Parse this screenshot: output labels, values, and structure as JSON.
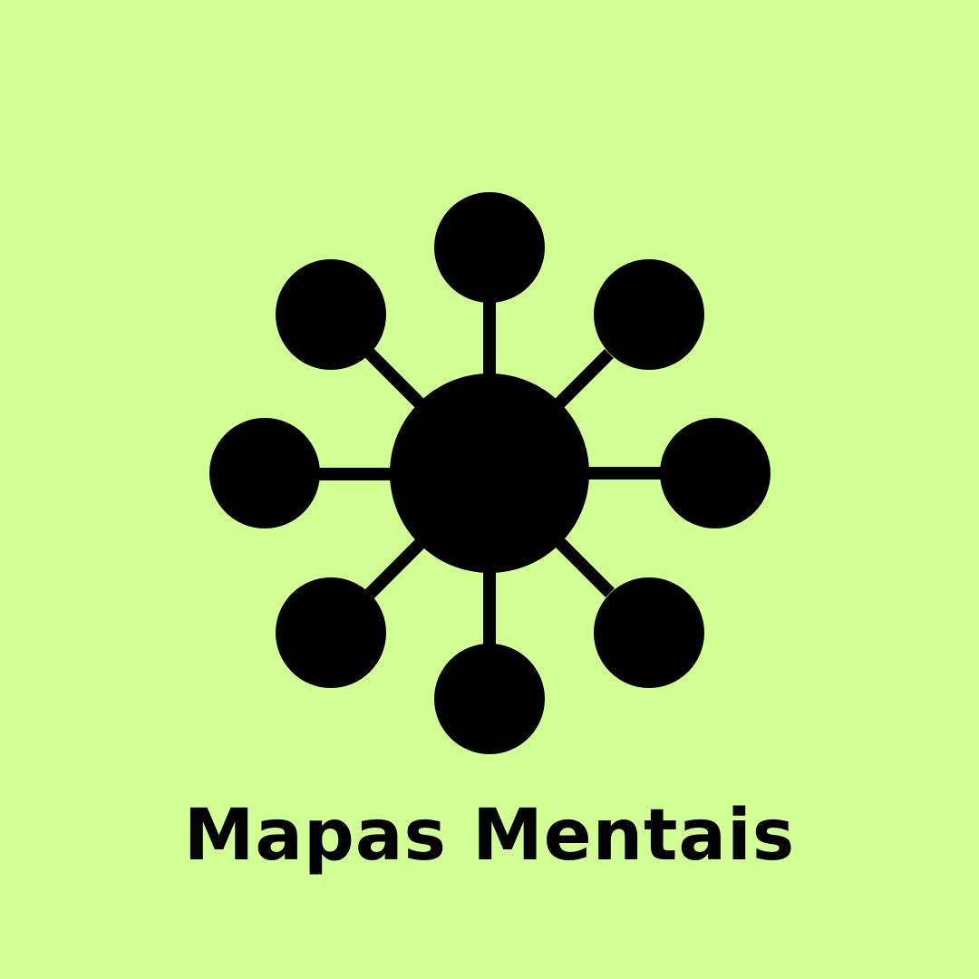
{
  "caption": "Mapas Mentais",
  "icon": {
    "name": "mind-map-icon",
    "color": "#000000"
  },
  "background_color": "#d2ff94"
}
